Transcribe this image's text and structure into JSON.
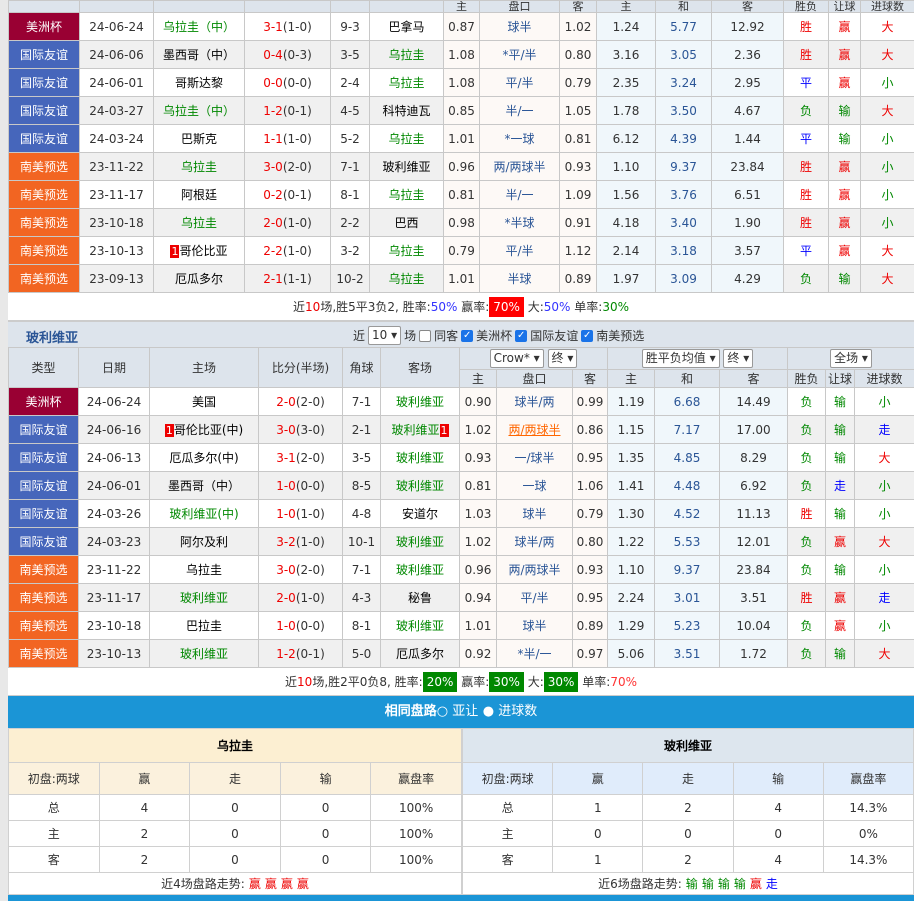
{
  "top": {
    "header_labels": [
      "主",
      "盘口",
      "客",
      "主",
      "和",
      "客",
      "胜负",
      "让球",
      "进球数"
    ],
    "rows": [
      {
        "type": "美洲杯",
        "color": "#990033",
        "date": "24-06-24",
        "home": "乌拉圭（中）",
        "hl": "home",
        "score": "3-1",
        "half": "(1-0)",
        "corner": "9-3",
        "away": "巴拿马",
        "o1": "0.87",
        "pan": "球半",
        "o2": "1.02",
        "w": "1.24",
        "d": "5.77",
        "l": "12.92",
        "r1": "胜",
        "r2": "赢",
        "r3": "大"
      },
      {
        "type": "国际友谊",
        "color": "#4666bb",
        "date": "24-06-06",
        "home": "墨西哥（中）",
        "hl": "away",
        "score": "0-4",
        "half": "(0-3)",
        "corner": "3-5",
        "away": "乌拉圭",
        "o1": "1.08",
        "pan": "*平/半",
        "o2": "0.80",
        "w": "3.16",
        "d": "3.05",
        "l": "2.36",
        "r1": "胜",
        "r2": "赢",
        "r3": "大"
      },
      {
        "type": "国际友谊",
        "color": "#4666bb",
        "date": "24-06-01",
        "home": "哥斯达黎",
        "hl": "away",
        "score": "0-0",
        "half": "(0-0)",
        "corner": "2-4",
        "away": "乌拉圭",
        "o1": "1.08",
        "pan": "平/半",
        "o2": "0.79",
        "w": "2.35",
        "d": "3.24",
        "l": "2.95",
        "r1": "平",
        "r2": "赢",
        "r3": "小"
      },
      {
        "type": "国际友谊",
        "color": "#4666bb",
        "date": "24-03-27",
        "home": "乌拉圭（中）",
        "hl": "home",
        "score": "1-2",
        "half": "(0-1)",
        "corner": "4-5",
        "away": "科特迪瓦",
        "o1": "0.85",
        "pan": "半/一",
        "o2": "1.05",
        "w": "1.78",
        "d": "3.50",
        "l": "4.67",
        "r1": "负",
        "r2": "输",
        "r3": "大"
      },
      {
        "type": "国际友谊",
        "color": "#4666bb",
        "date": "24-03-24",
        "home": "巴斯克",
        "hl": "away",
        "score": "1-1",
        "half": "(1-0)",
        "corner": "5-2",
        "away": "乌拉圭",
        "o1": "1.01",
        "pan": "*一球",
        "o2": "0.81",
        "w": "6.12",
        "d": "4.39",
        "l": "1.44",
        "r1": "平",
        "r2": "输",
        "r3": "小"
      },
      {
        "type": "南美预选",
        "color": "#f26522",
        "date": "23-11-22",
        "home": "乌拉圭",
        "hl": "home",
        "score": "3-0",
        "half": "(2-0)",
        "corner": "7-1",
        "away": "玻利维亚",
        "o1": "0.96",
        "pan": "两/两球半",
        "o2": "0.93",
        "w": "1.10",
        "d": "9.37",
        "l": "23.84",
        "r1": "胜",
        "r2": "赢",
        "r3": "小"
      },
      {
        "type": "南美预选",
        "color": "#f26522",
        "date": "23-11-17",
        "home": "阿根廷",
        "hl": "away",
        "score": "0-2",
        "half": "(0-1)",
        "corner": "8-1",
        "away": "乌拉圭",
        "o1": "0.81",
        "pan": "半/一",
        "o2": "1.09",
        "w": "1.56",
        "d": "3.76",
        "l": "6.51",
        "r1": "胜",
        "r2": "赢",
        "r3": "小"
      },
      {
        "type": "南美预选",
        "color": "#f26522",
        "date": "23-10-18",
        "home": "乌拉圭",
        "hl": "home",
        "score": "2-0",
        "half": "(1-0)",
        "corner": "2-2",
        "away": "巴西",
        "o1": "0.98",
        "pan": "*半球",
        "o2": "0.91",
        "w": "4.18",
        "d": "3.40",
        "l": "1.90",
        "r1": "胜",
        "r2": "赢",
        "r3": "小"
      },
      {
        "type": "南美预选",
        "color": "#f26522",
        "date": "23-10-13",
        "home": "哥伦比亚",
        "home_red": "1",
        "hl": "away",
        "score": "2-2",
        "half": "(1-0)",
        "corner": "3-2",
        "away": "乌拉圭",
        "o1": "0.79",
        "pan": "平/半",
        "o2": "1.12",
        "w": "2.14",
        "d": "3.18",
        "l": "3.57",
        "r1": "平",
        "r2": "赢",
        "r3": "大"
      },
      {
        "type": "南美预选",
        "color": "#f26522",
        "date": "23-09-13",
        "home": "厄瓜多尔",
        "hl": "away",
        "score": "2-1",
        "half": "(1-1)",
        "corner": "10-2",
        "away": "乌拉圭",
        "o1": "1.01",
        "pan": "半球",
        "o2": "0.89",
        "w": "1.97",
        "d": "3.09",
        "l": "4.29",
        "r1": "负",
        "r2": "输",
        "r3": "大"
      }
    ],
    "summary": {
      "p1": "近",
      "n": "10",
      "p2": "场,胜5平3负2, 胜率:",
      "win": "50%",
      "p3": " 赢率:",
      "ying": "70%",
      "p4": " 大:",
      "da": "50%",
      "p5": " 单率:",
      "dan": "30%"
    }
  },
  "bottom": {
    "team": "玻利维亚",
    "filter": {
      "near": "近",
      "count": "10",
      "unit": "场",
      "same": "同客",
      "c1": "美洲杯",
      "c2": "国际友谊",
      "c3": "南美预选"
    },
    "headers": [
      "类型",
      "日期",
      "主场",
      "比分(半场)",
      "角球",
      "客场"
    ],
    "company": "Crow*",
    "final1": "终",
    "avg": "胜平负均值",
    "final2": "终",
    "scope": "全场",
    "sub_headers": [
      "主",
      "盘口",
      "客",
      "主",
      "和",
      "客",
      "胜负",
      "让球",
      "进球数"
    ],
    "rows": [
      {
        "type": "美洲杯",
        "color": "#990033",
        "date": "24-06-24",
        "home": "美国",
        "hl": "away",
        "score": "2-0",
        "half": "(2-0)",
        "corner": "7-1",
        "away": "玻利维亚",
        "o1": "0.90",
        "pan": "球半/两",
        "o2": "0.99",
        "w": "1.19",
        "d": "6.68",
        "l": "14.49",
        "r1": "负",
        "r2": "输",
        "r3": "小"
      },
      {
        "type": "国际友谊",
        "color": "#4666bb",
        "date": "24-06-16",
        "home": "哥伦比亚(中)",
        "home_red": "1",
        "hl": "away",
        "away_red": "1",
        "score": "3-0",
        "half": "(3-0)",
        "corner": "2-1",
        "away": "玻利维亚",
        "o1": "1.02",
        "pan": "两/两球半",
        "pan_link": true,
        "o2": "0.86",
        "w": "1.15",
        "d": "7.17",
        "l": "17.00",
        "r1": "负",
        "r2": "输",
        "r3": "走"
      },
      {
        "type": "国际友谊",
        "color": "#4666bb",
        "date": "24-06-13",
        "home": "厄瓜多尔(中)",
        "hl": "away",
        "score": "3-1",
        "half": "(2-0)",
        "corner": "3-5",
        "away": "玻利维亚",
        "o1": "0.93",
        "pan": "一/球半",
        "o2": "0.95",
        "w": "1.35",
        "d": "4.85",
        "l": "8.29",
        "r1": "负",
        "r2": "输",
        "r3": "大"
      },
      {
        "type": "国际友谊",
        "color": "#4666bb",
        "date": "24-06-01",
        "home": "墨西哥（中）",
        "hl": "away",
        "score": "1-0",
        "half": "(0-0)",
        "corner": "8-5",
        "away": "玻利维亚",
        "o1": "0.81",
        "pan": "一球",
        "o2": "1.06",
        "w": "1.41",
        "d": "4.48",
        "l": "6.92",
        "r1": "负",
        "r2": "走",
        "r3": "小"
      },
      {
        "type": "国际友谊",
        "color": "#4666bb",
        "date": "24-03-26",
        "home": "玻利维亚(中)",
        "hl": "home",
        "score": "1-0",
        "half": "(1-0)",
        "corner": "4-8",
        "away": "安道尔",
        "o1": "1.03",
        "pan": "球半",
        "o2": "0.79",
        "w": "1.30",
        "d": "4.52",
        "l": "11.13",
        "r1": "胜",
        "r2": "输",
        "r3": "小"
      },
      {
        "type": "国际友谊",
        "color": "#4666bb",
        "date": "24-03-23",
        "home": "阿尔及利",
        "hl": "away",
        "score": "3-2",
        "half": "(1-0)",
        "corner": "10-1",
        "away": "玻利维亚",
        "o1": "1.02",
        "pan": "球半/两",
        "o2": "0.80",
        "w": "1.22",
        "d": "5.53",
        "l": "12.01",
        "r1": "负",
        "r2": "赢",
        "r3": "大"
      },
      {
        "type": "南美预选",
        "color": "#f26522",
        "date": "23-11-22",
        "home": "乌拉圭",
        "hl": "away",
        "score": "3-0",
        "half": "(2-0)",
        "corner": "7-1",
        "away": "玻利维亚",
        "o1": "0.96",
        "pan": "两/两球半",
        "o2": "0.93",
        "w": "1.10",
        "d": "9.37",
        "l": "23.84",
        "r1": "负",
        "r2": "输",
        "r3": "小"
      },
      {
        "type": "南美预选",
        "color": "#f26522",
        "date": "23-11-17",
        "home": "玻利维亚",
        "hl": "home",
        "score": "2-0",
        "half": "(1-0)",
        "corner": "4-3",
        "away": "秘鲁",
        "o1": "0.94",
        "pan": "平/半",
        "o2": "0.95",
        "w": "2.24",
        "d": "3.01",
        "l": "3.51",
        "r1": "胜",
        "r2": "赢",
        "r3": "走"
      },
      {
        "type": "南美预选",
        "color": "#f26522",
        "date": "23-10-18",
        "home": "巴拉圭",
        "hl": "away",
        "score": "1-0",
        "half": "(0-0)",
        "corner": "8-1",
        "away": "玻利维亚",
        "o1": "1.01",
        "pan": "球半",
        "o2": "0.89",
        "w": "1.29",
        "d": "5.23",
        "l": "10.04",
        "r1": "负",
        "r2": "赢",
        "r3": "小"
      },
      {
        "type": "南美预选",
        "color": "#f26522",
        "date": "23-10-13",
        "home": "玻利维亚",
        "hl": "home",
        "score": "1-2",
        "half": "(0-1)",
        "corner": "5-0",
        "away": "厄瓜多尔",
        "o1": "0.92",
        "pan": "*半/一",
        "o2": "0.97",
        "w": "5.06",
        "d": "3.51",
        "l": "1.72",
        "r1": "负",
        "r2": "输",
        "r3": "大"
      }
    ],
    "summary": {
      "p1": "近",
      "n": "10",
      "p2": "场,胜2平0负8, 胜率:",
      "win": "20%",
      "p3": " 赢率:",
      "ying": "30%",
      "p4": " 大:",
      "da": "30%",
      "p5": " 单率:",
      "dan": "70%"
    }
  },
  "same": {
    "title": "相同盘路",
    "opt1": "亚让",
    "opt2": "进球数",
    "panels": [
      {
        "team": "乌拉圭",
        "head_bg": "#fcefd2",
        "sub_bg": "#fbf1dd",
        "headers": [
          "初盘:两球",
          "赢",
          "走",
          "输",
          "赢盘率"
        ],
        "rows": [
          [
            "总",
            "4",
            "0",
            "0",
            "100%"
          ],
          [
            "主",
            "2",
            "0",
            "0",
            "100%"
          ],
          [
            "客",
            "2",
            "0",
            "0",
            "100%"
          ]
        ],
        "trend_label": "近4场盘路走势:",
        "trend": [
          "赢",
          "赢",
          "赢",
          "赢"
        ]
      },
      {
        "team": "玻利维亚",
        "head_bg": "#dde6ee",
        "sub_bg": "#e0ecfb",
        "headers": [
          "初盘:两球",
          "赢",
          "走",
          "输",
          "赢盘率"
        ],
        "rows": [
          [
            "总",
            "1",
            "2",
            "4",
            "14.3%"
          ],
          [
            "主",
            "0",
            "0",
            "0",
            "0%"
          ],
          [
            "客",
            "1",
            "2",
            "4",
            "14.3%"
          ]
        ],
        "trend_label": "近6场盘路走势:",
        "trend": [
          "输",
          "输",
          "输",
          "输",
          "赢",
          "走"
        ]
      }
    ]
  }
}
